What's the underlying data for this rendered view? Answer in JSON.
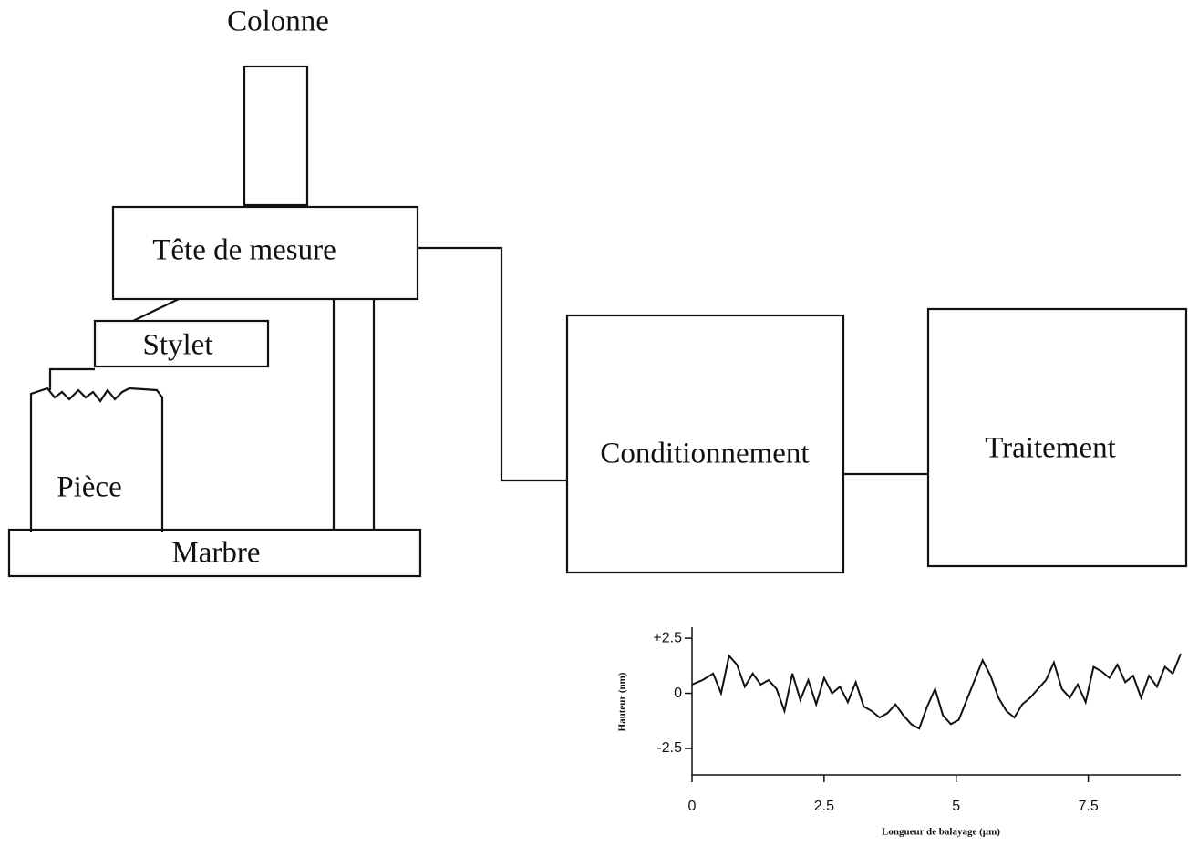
{
  "labels": {
    "colonne": "Colonne",
    "tete": "Tête de  mesure",
    "stylet": "Stylet",
    "piece": "Pièce",
    "marbre": "Marbre",
    "conditionnement": "Conditionnement",
    "traitement": "Traitement"
  },
  "chart_data": {
    "type": "line",
    "xlabel": "Longueur de balayage (µm)",
    "ylabel": "Hauteur (nm)",
    "color": "#111111",
    "x": [
      0,
      0.2,
      0.4,
      0.55,
      0.7,
      0.85,
      1.0,
      1.15,
      1.3,
      1.45,
      1.6,
      1.75,
      1.9,
      2.05,
      2.2,
      2.35,
      2.5,
      2.65,
      2.8,
      2.95,
      3.1,
      3.25,
      3.4,
      3.55,
      3.7,
      3.85,
      4.0,
      4.15,
      4.3,
      4.45,
      4.6,
      4.75,
      4.9,
      5.05,
      5.2,
      5.35,
      5.5,
      5.65,
      5.8,
      5.95,
      6.1,
      6.25,
      6.4,
      6.55,
      6.7,
      6.85,
      7.0,
      7.15,
      7.3,
      7.45,
      7.6,
      7.75,
      7.9,
      8.05,
      8.2,
      8.35,
      8.5,
      8.65,
      8.8,
      8.95,
      9.1,
      9.25
    ],
    "values": [
      0.4,
      0.6,
      0.9,
      0.0,
      1.7,
      1.3,
      0.3,
      0.9,
      0.4,
      0.6,
      0.2,
      -0.8,
      0.9,
      -0.3,
      0.6,
      -0.5,
      0.7,
      0.0,
      0.3,
      -0.4,
      0.5,
      -0.6,
      -0.8,
      -1.1,
      -0.9,
      -0.5,
      -1.0,
      -1.4,
      -1.6,
      -0.6,
      0.2,
      -1.0,
      -1.4,
      -1.2,
      -0.3,
      0.6,
      1.5,
      0.8,
      -0.2,
      -0.8,
      -1.1,
      -0.5,
      -0.2,
      0.2,
      0.6,
      1.4,
      0.2,
      -0.2,
      0.4,
      -0.4,
      1.2,
      1.0,
      0.7,
      1.3,
      0.5,
      0.8,
      -0.2,
      0.8,
      0.3,
      1.2,
      0.9,
      1.8
    ],
    "xlim": [
      0,
      9.25
    ],
    "ylim": [
      -3.7,
      3.0
    ],
    "xticks": [
      0,
      2.5,
      5,
      7.5
    ],
    "yticks": [
      {
        "value": 2.5,
        "label": "+2.5"
      },
      0,
      -2.5
    ]
  }
}
